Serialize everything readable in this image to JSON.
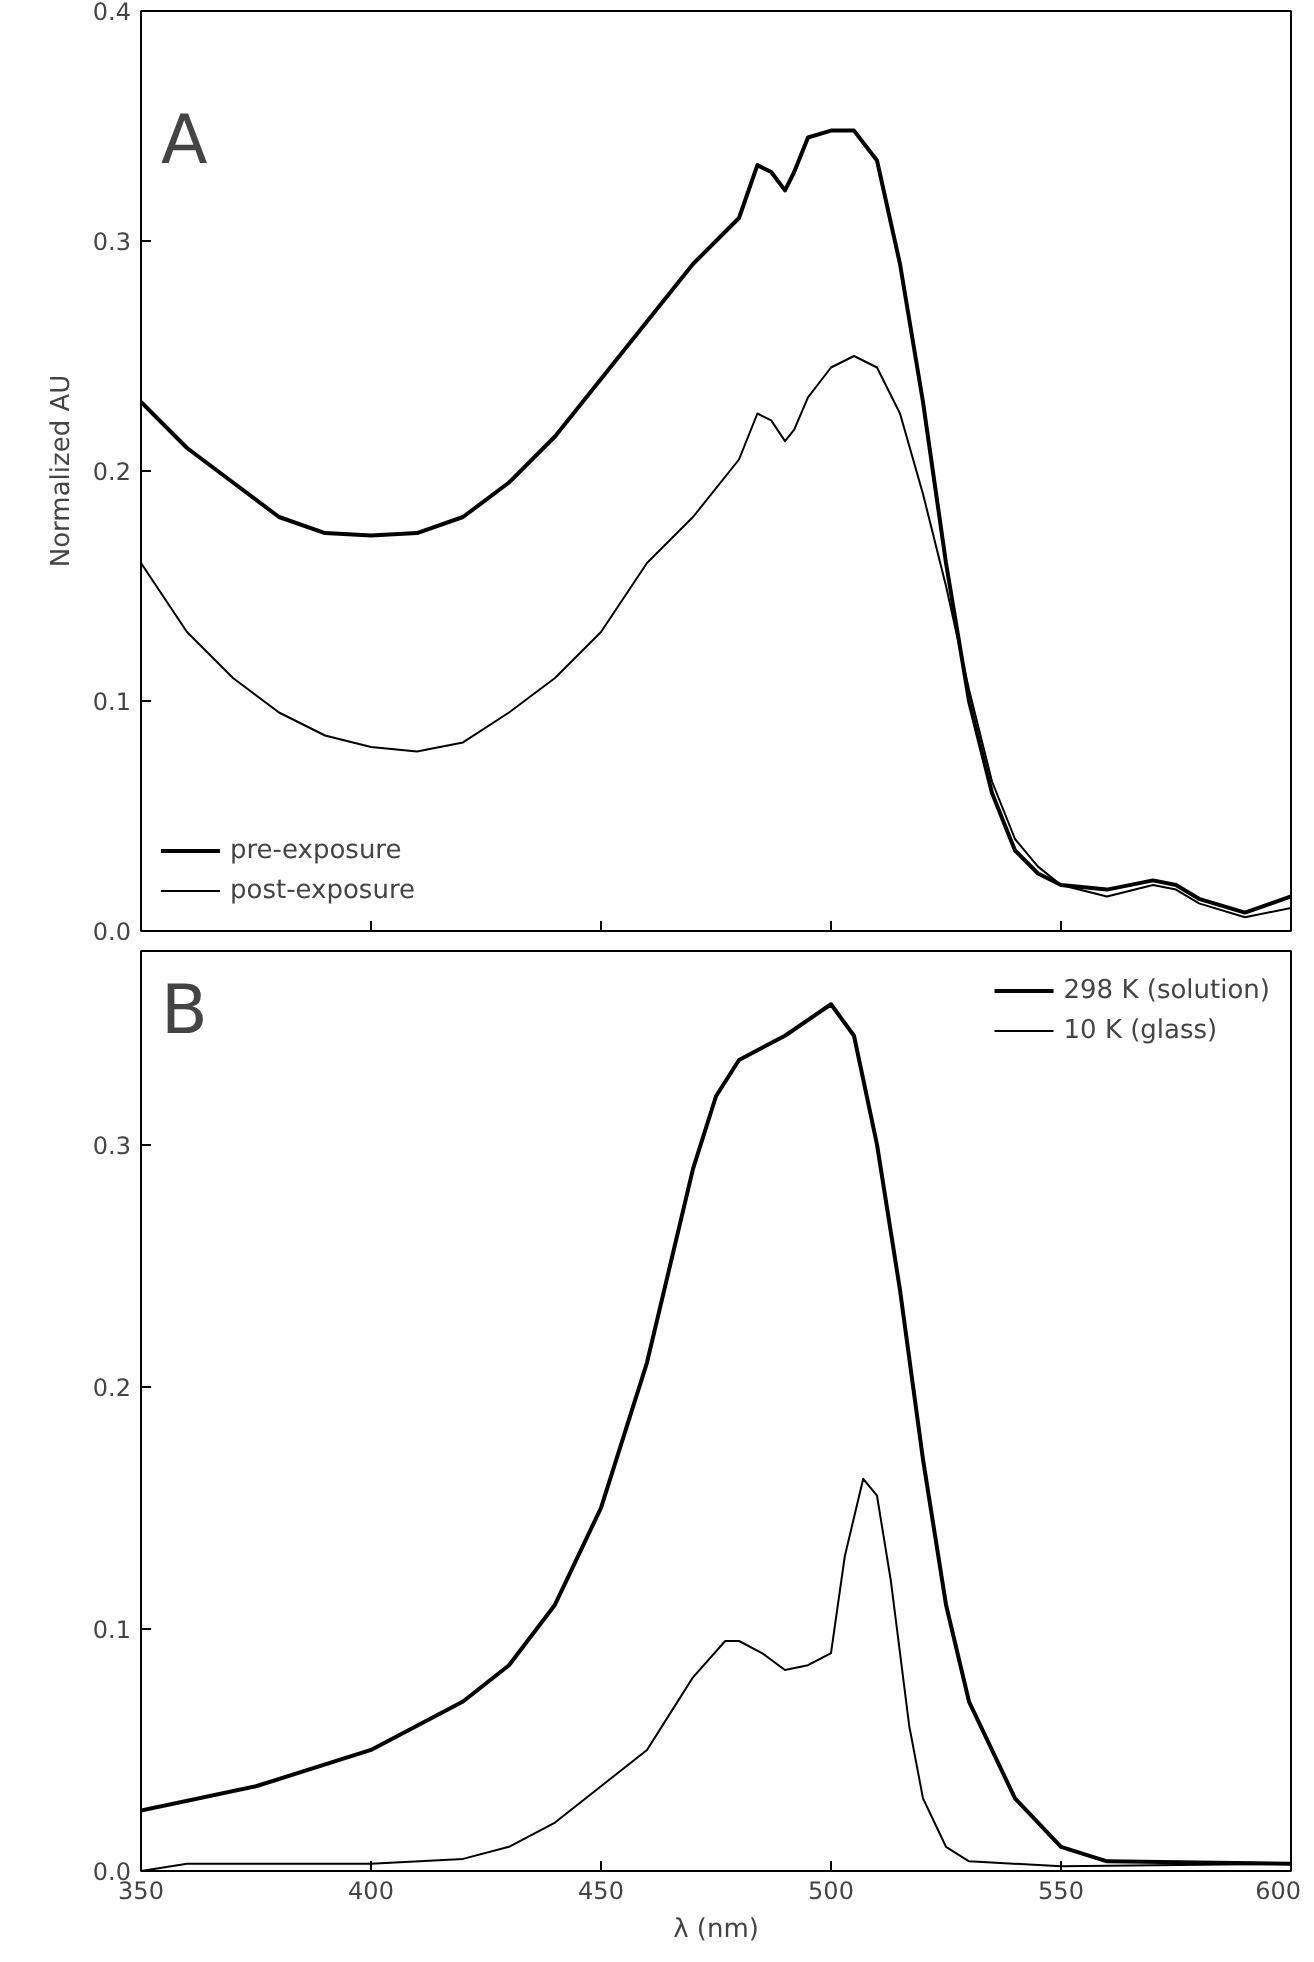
{
  "chart_data": [
    {
      "type": "line",
      "ylabel": "Normalized AU",
      "annotations": [
        "A"
      ],
      "xlim": [
        350,
        600
      ],
      "ylim": [
        0,
        0.4
      ],
      "xticks": [
        350,
        400,
        450,
        500,
        550,
        600
      ],
      "yticks": [
        {
          "value": 0,
          "label": "0.0"
        },
        0.1,
        0.2,
        0.3,
        0.4
      ],
      "tick_labels": "y",
      "grid": false,
      "legend": "bottom left",
      "marker": "none",
      "line_style": "solid",
      "x": [
        350,
        360,
        370,
        380,
        390,
        400,
        410,
        420,
        430,
        440,
        450,
        460,
        470,
        480,
        484,
        487,
        490,
        492,
        495,
        500,
        505,
        510,
        515,
        520,
        525,
        530,
        535,
        540,
        545,
        550,
        560,
        570,
        575,
        580,
        590,
        600
      ],
      "series": [
        {
          "name": "pre-exposure",
          "color": "#000000",
          "values": [
            0.23,
            0.21,
            0.195,
            0.18,
            0.173,
            0.172,
            0.173,
            0.18,
            0.195,
            0.215,
            0.24,
            0.265,
            0.29,
            0.31,
            0.333,
            0.33,
            0.322,
            0.33,
            0.345,
            0.348,
            0.348,
            0.335,
            0.29,
            0.23,
            0.16,
            0.1,
            0.06,
            0.035,
            0.025,
            0.02,
            0.018,
            0.022,
            0.02,
            0.014,
            0.008,
            0.015
          ]
        },
        {
          "name": "post-exposure",
          "color": "#000000",
          "values": [
            0.16,
            0.13,
            0.11,
            0.095,
            0.085,
            0.08,
            0.078,
            0.082,
            0.095,
            0.11,
            0.13,
            0.16,
            0.18,
            0.205,
            0.225,
            0.222,
            0.213,
            0.218,
            0.232,
            0.245,
            0.25,
            0.245,
            0.225,
            0.19,
            0.15,
            0.105,
            0.065,
            0.04,
            0.028,
            0.02,
            0.015,
            0.02,
            0.018,
            0.012,
            0.006,
            0.01
          ]
        }
      ]
    },
    {
      "type": "line",
      "xlabel": "λ (nm)",
      "annotations": [
        "B"
      ],
      "xlim": [
        350,
        600
      ],
      "ylim": [
        0,
        0.38
      ],
      "xticks": [
        350,
        400,
        450,
        500,
        550,
        600
      ],
      "yticks": [
        {
          "value": 0,
          "label": "0.0"
        },
        0.1,
        0.2,
        0.3
      ],
      "grid": false,
      "legend": "top right",
      "marker": "none",
      "line_style": "solid",
      "series": [
        {
          "name": "298 K (solution)",
          "color": "#000000",
          "x": [
            350,
            375,
            400,
            420,
            430,
            440,
            450,
            460,
            470,
            475,
            480,
            490,
            500,
            505,
            510,
            515,
            520,
            525,
            530,
            540,
            550,
            560,
            600
          ],
          "values": [
            0.025,
            0.035,
            0.05,
            0.07,
            0.085,
            0.11,
            0.15,
            0.21,
            0.29,
            0.32,
            0.335,
            0.345,
            0.358,
            0.345,
            0.3,
            0.24,
            0.17,
            0.11,
            0.07,
            0.03,
            0.01,
            0.004,
            0.003
          ]
        },
        {
          "name": "10 K (glass)",
          "color": "#000000",
          "x": [
            350,
            360,
            400,
            420,
            430,
            440,
            450,
            460,
            465,
            470,
            477,
            480,
            485,
            490,
            495,
            500,
            503,
            507,
            510,
            513,
            517,
            520,
            525,
            530,
            550,
            600
          ],
          "values": [
            0.0,
            0.003,
            0.003,
            0.005,
            0.01,
            0.02,
            0.035,
            0.05,
            0.065,
            0.08,
            0.095,
            0.095,
            0.09,
            0.083,
            0.085,
            0.09,
            0.13,
            0.162,
            0.155,
            0.12,
            0.06,
            0.03,
            0.01,
            0.004,
            0.002,
            0.003
          ]
        }
      ]
    }
  ]
}
